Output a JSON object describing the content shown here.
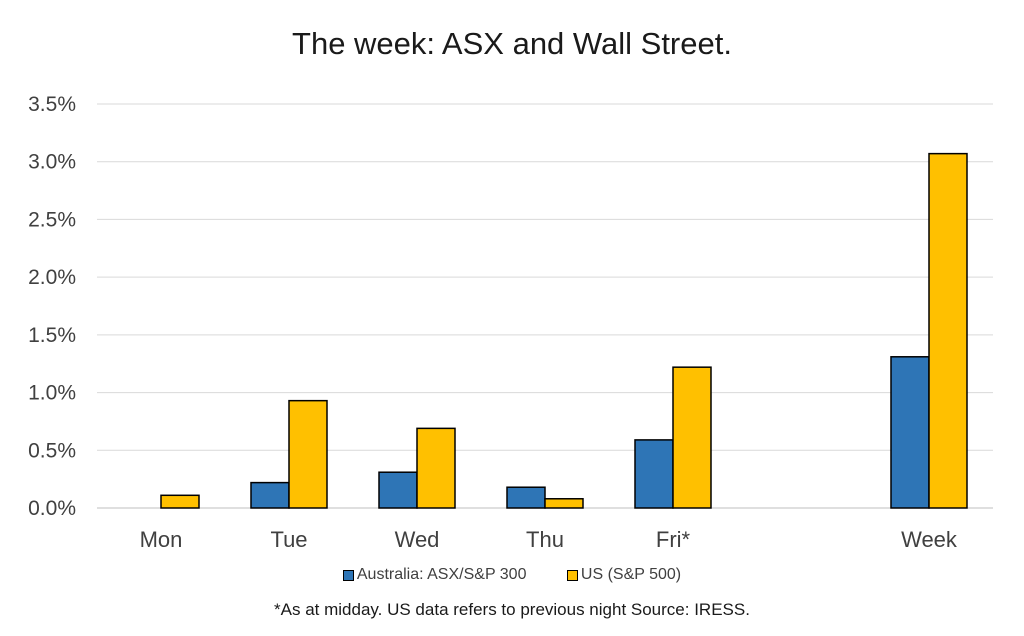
{
  "chart_data": {
    "type": "bar",
    "title": "The week:  ASX and Wall Street.",
    "categories": [
      "Mon",
      "Tue",
      "Wed",
      "Thu",
      "Fri*",
      "",
      "Week"
    ],
    "series": [
      {
        "name": "Australia: ASX/S&P 300",
        "color": "#2e75b6",
        "values": [
          null,
          0.22,
          0.31,
          0.18,
          0.59,
          null,
          1.31
        ]
      },
      {
        "name": "US (S&P 500)",
        "color": "#ffc000",
        "values": [
          0.11,
          0.93,
          0.69,
          0.08,
          1.22,
          null,
          3.07
        ]
      }
    ],
    "yticks": [
      "0.0%",
      "0.5%",
      "1.0%",
      "1.5%",
      "2.0%",
      "2.5%",
      "3.0%",
      "3.5%"
    ],
    "ylim": [
      0,
      3.5
    ],
    "grid": true,
    "legend_position": "bottom",
    "footnote": "*As at midday. US data refers to previous night  Source:  IRESS."
  }
}
